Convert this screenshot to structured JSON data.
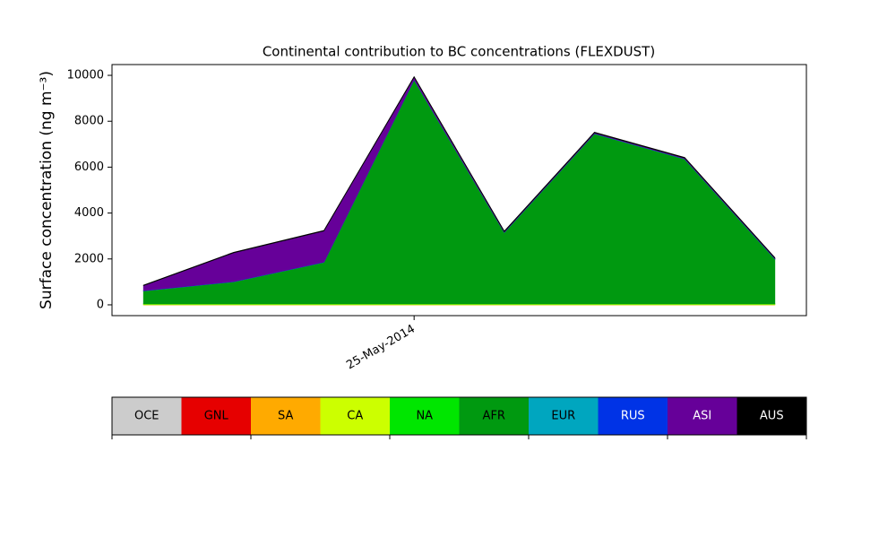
{
  "chart_data": {
    "type": "stackedarea",
    "title": "Continental contribution to BC concentrations (FLEXDUST)",
    "y_label": "Surface concentration (ng m⁻³)",
    "x": [
      "2014-05-22",
      "2014-05-23",
      "2014-05-24",
      "2014-05-25",
      "2014-05-26",
      "2014-05-27",
      "2014-05-28",
      "2014-05-29"
    ],
    "xlim": [
      "2014-05-21T15:36Z",
      "2014-05-29T08:24Z"
    ],
    "xticks": [
      {
        "value": "2014-05-25",
        "label": "25-May-2014"
      }
    ],
    "ylim": [
      -470,
      10470
    ],
    "yticks": [
      0,
      2000,
      4000,
      6000,
      8000,
      10000
    ],
    "series": [
      {
        "name": "OCE",
        "color": "#cccccc",
        "values": [
          0,
          0,
          0,
          0,
          0,
          0,
          0,
          0
        ]
      },
      {
        "name": "GNL",
        "color": "#e60000",
        "values": [
          0,
          0,
          0,
          0,
          0,
          0,
          0,
          0
        ]
      },
      {
        "name": "SA",
        "color": "#ffaa00",
        "values": [
          5,
          5,
          5,
          5,
          5,
          5,
          5,
          5
        ]
      },
      {
        "name": "CA",
        "color": "#ccff00",
        "values": [
          30,
          30,
          30,
          30,
          30,
          30,
          30,
          30
        ]
      },
      {
        "name": "NA",
        "color": "#00e600",
        "values": [
          10,
          10,
          10,
          10,
          10,
          10,
          10,
          10
        ]
      },
      {
        "name": "AFR",
        "color": "#009910",
        "values": [
          560,
          960,
          1810,
          9760,
          3110,
          7410,
          6310,
          1960
        ]
      },
      {
        "name": "EUR",
        "color": "#00a6bf",
        "values": [
          5,
          5,
          5,
          5,
          5,
          5,
          5,
          5
        ]
      },
      {
        "name": "RUS",
        "color": "#0033e6",
        "values": [
          10,
          10,
          10,
          10,
          10,
          10,
          10,
          10
        ]
      },
      {
        "name": "ASI",
        "color": "#660099",
        "values": [
          220,
          1250,
          1350,
          100,
          20,
          30,
          30,
          20
        ]
      },
      {
        "name": "AUS",
        "color": "#000000",
        "values": [
          20,
          20,
          20,
          20,
          20,
          20,
          20,
          20
        ]
      }
    ]
  }
}
